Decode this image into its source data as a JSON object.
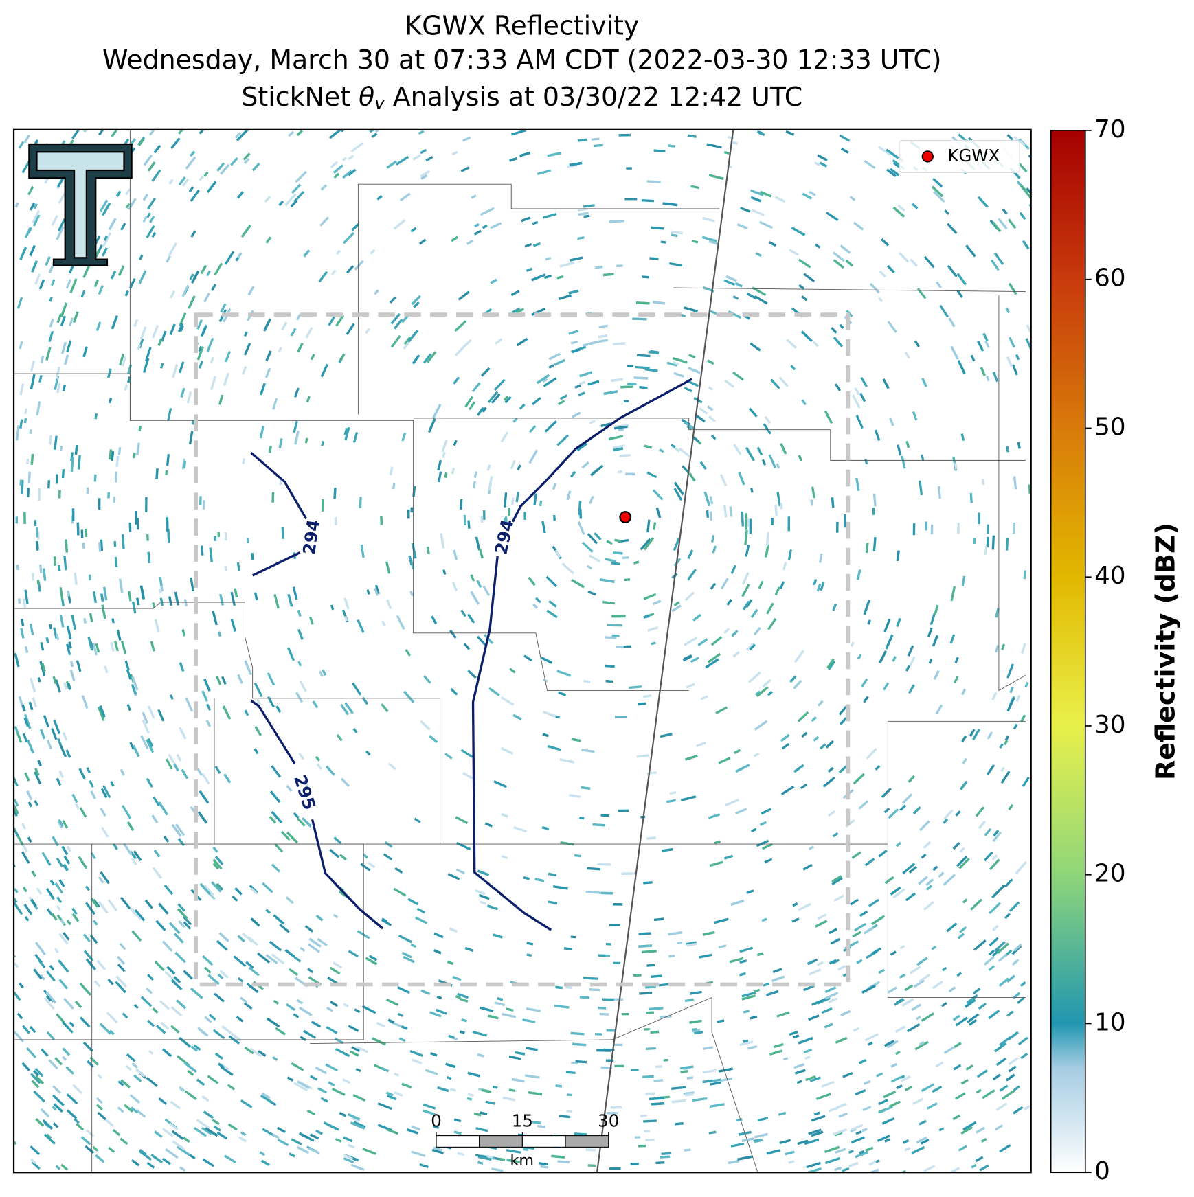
{
  "title": [
    "KGWX Reflectivity",
    "Wednesday, March 30 at 07:33 AM CDT (2022-03-30 12:33 UTC)"
  ],
  "subtitle": {
    "before": "StickNet ",
    "symbol": "θ",
    "subscript": "v",
    "after": " Analysis at 03/30/22 12:42 UTC"
  },
  "legend": {
    "label": "KGWX"
  },
  "colorbar": {
    "label": "Reflectivity (dBZ)",
    "lim": [
      0,
      70
    ],
    "ticks": [
      0,
      10,
      20,
      30,
      40,
      50,
      60,
      70
    ]
  },
  "contours": [
    {
      "label": "294"
    },
    {
      "label": "294"
    },
    {
      "label": "295"
    }
  ],
  "scale_bar": {
    "ticks": [
      0,
      15,
      30
    ],
    "unit": "km"
  }
}
